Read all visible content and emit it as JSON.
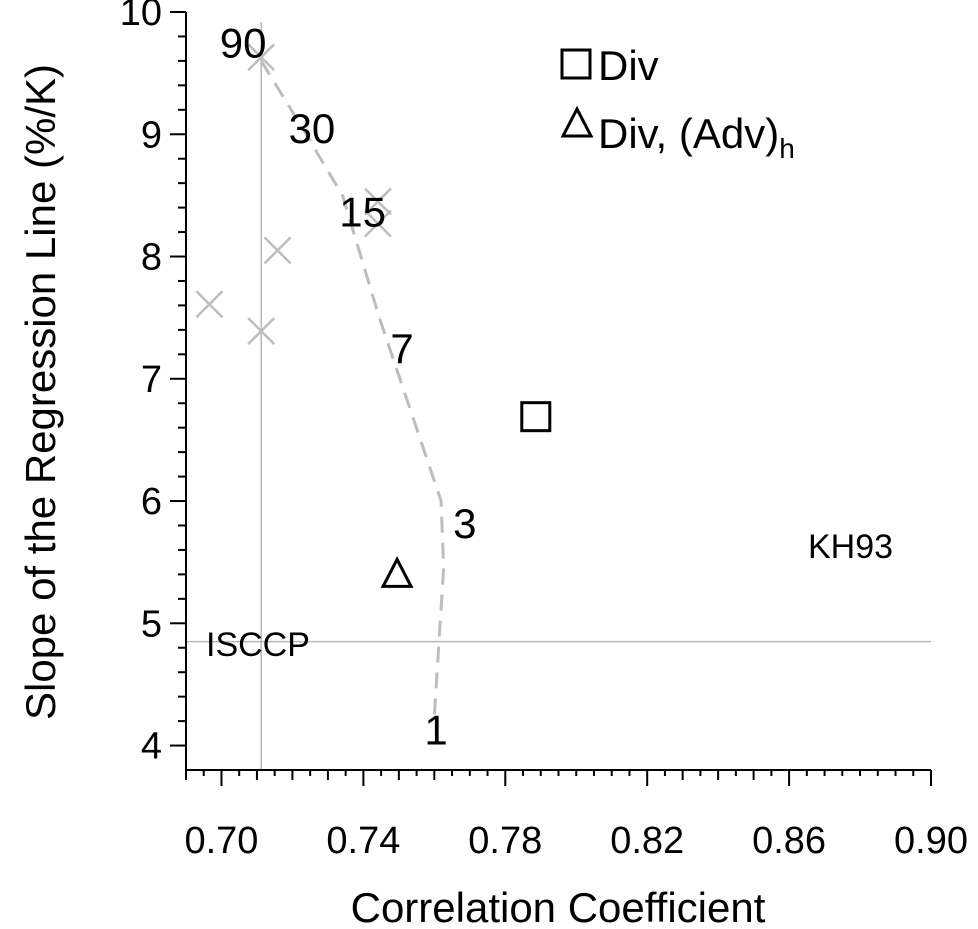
{
  "chart_data": {
    "type": "scatter",
    "title": "",
    "xlabel": "Correlation Coefficient",
    "ylabel": "Slope of the Regression Line (%/K)",
    "xlim": [
      0.69,
      0.9
    ],
    "ylim": [
      3.8,
      10
    ],
    "xticks": [
      0.7,
      0.74,
      0.78,
      0.82,
      0.86,
      0.9
    ],
    "xtick_labels": [
      "0.70",
      "0.74",
      "0.78",
      "0.82",
      "0.86",
      "0.90"
    ],
    "yticks": [
      4,
      5,
      6,
      7,
      8,
      9,
      10
    ],
    "ytick_labels": [
      "4",
      "5",
      "6",
      "7",
      "8",
      "9",
      "10"
    ],
    "grid": false,
    "legend_position": "top-right",
    "legend": [
      {
        "marker": "square",
        "label": "Div"
      },
      {
        "marker": "triangle",
        "label": "Div, (Adv)",
        "subscript": "h"
      }
    ],
    "reference_lines": [
      {
        "orientation": "vertical",
        "x": 0.7112,
        "label": "ISCCP"
      },
      {
        "orientation": "horizontal",
        "y": 4.85,
        "label": "KH93"
      }
    ],
    "series": [
      {
        "marker": "dashed-line",
        "color": "#bdbdbd",
        "points": [
          {
            "x": 0.7112,
            "y": 9.6
          },
          {
            "x": 0.7228,
            "y": 9.05
          },
          {
            "x": 0.7341,
            "y": 8.5
          },
          {
            "x": 0.7445,
            "y": 7.5
          },
          {
            "x": 0.7619,
            "y": 6.0
          },
          {
            "x": 0.7626,
            "y": 5.45
          },
          {
            "x": 0.7599,
            "y": 4.2
          }
        ],
        "labels": [
          {
            "text": "90",
            "x": 0.7061,
            "y": 9.75
          },
          {
            "text": "30",
            "x": 0.7255,
            "y": 9.05
          },
          {
            "text": "15",
            "x": 0.7398,
            "y": 8.37
          },
          {
            "text": "7",
            "x": 0.7509,
            "y": 7.25
          },
          {
            "text": "3",
            "x": 0.7686,
            "y": 5.82
          },
          {
            "text": "1",
            "x": 0.7605,
            "y": 4.13
          }
        ]
      },
      {
        "marker": "x",
        "color": "#bdbdbd",
        "points": [
          {
            "x": 0.7112,
            "y": 9.63
          },
          {
            "x": 0.7441,
            "y": 8.45
          },
          {
            "x": 0.7441,
            "y": 8.27
          },
          {
            "x": 0.7158,
            "y": 8.05
          },
          {
            "x": 0.6966,
            "y": 7.61
          },
          {
            "x": 0.7112,
            "y": 7.39
          }
        ]
      },
      {
        "marker": "square",
        "color": "#000000",
        "points": [
          {
            "x": 0.7886,
            "y": 6.69
          }
        ]
      },
      {
        "marker": "triangle",
        "color": "#000000",
        "points": [
          {
            "x": 0.7495,
            "y": 5.4
          }
        ]
      }
    ]
  }
}
